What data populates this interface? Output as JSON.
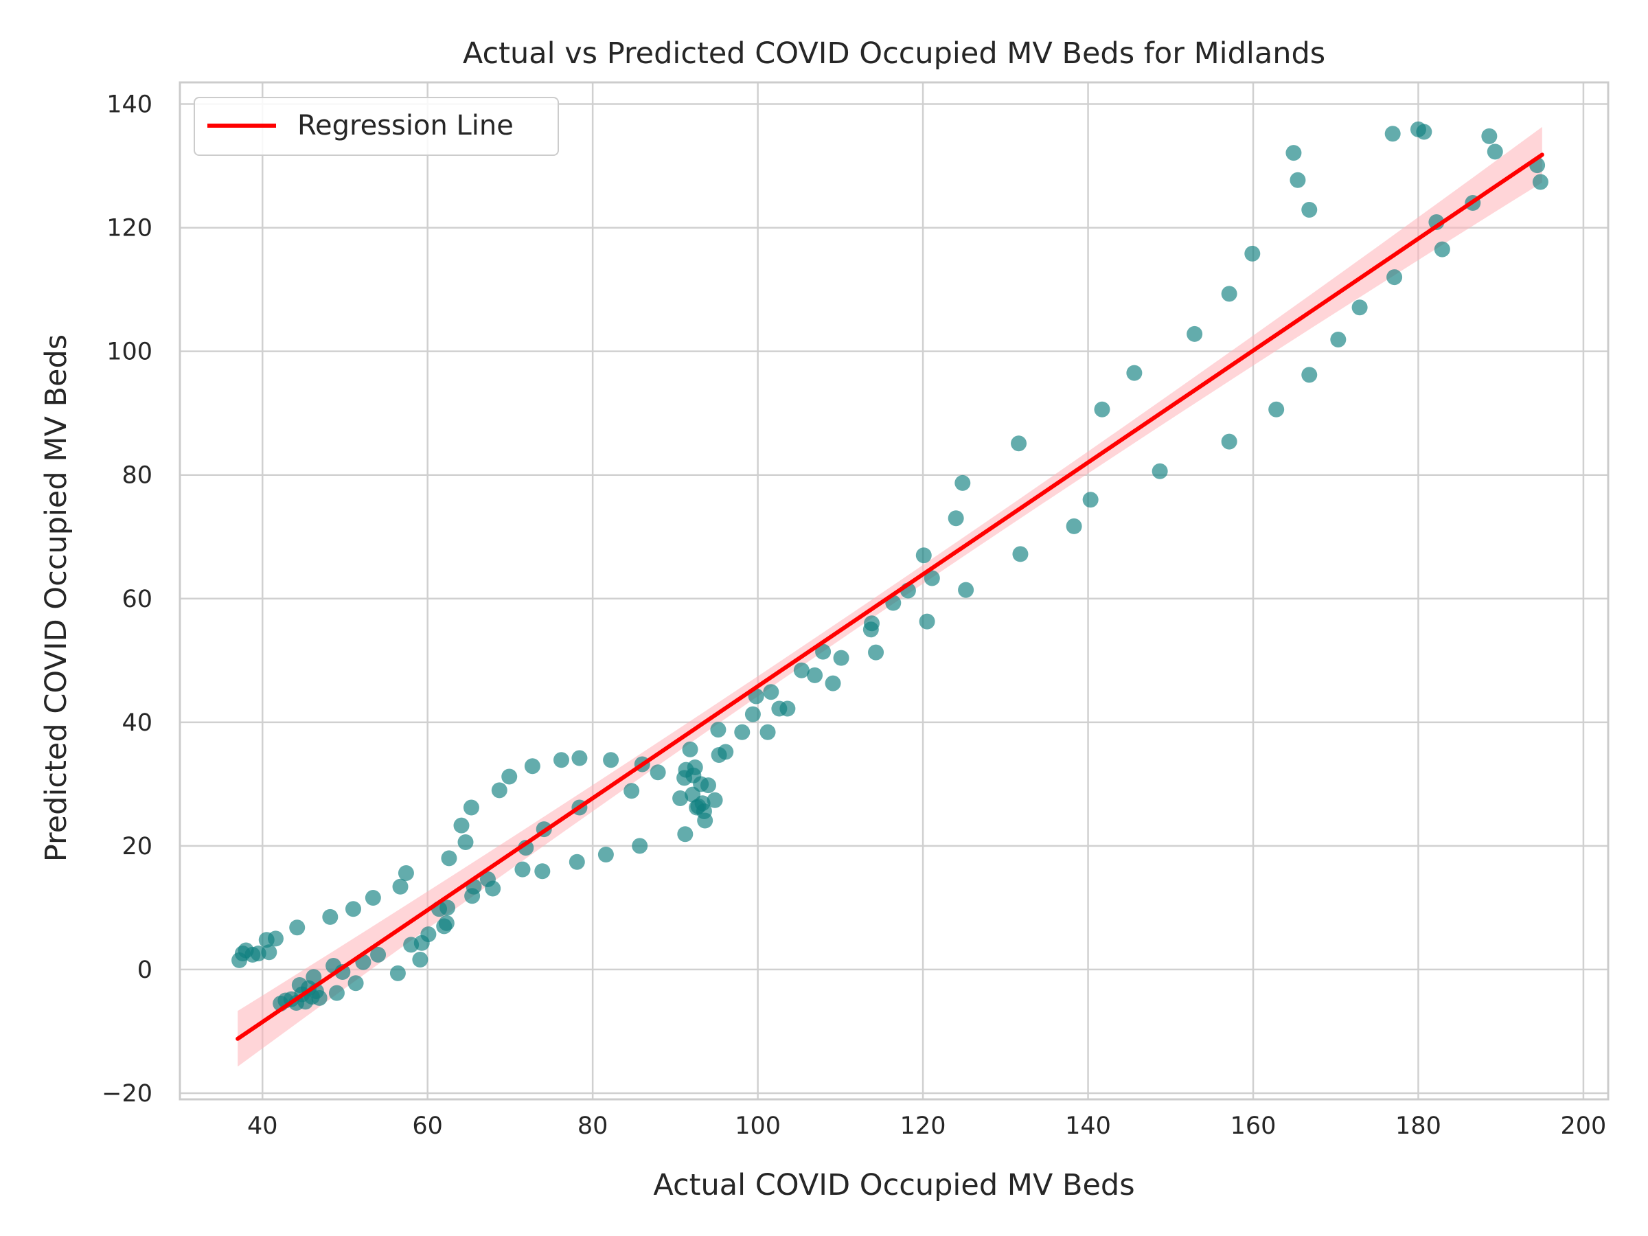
{
  "chart_data": {
    "type": "scatter",
    "title": "Actual vs Predicted COVID Occupied MV Beds for Midlands",
    "xlabel": "Actual COVID Occupied MV Beds",
    "ylabel": "Predicted COVID Occupied MV Beds",
    "xlim": [
      30,
      203
    ],
    "ylim": [
      -21,
      143.5
    ],
    "xticks": [
      40,
      60,
      80,
      100,
      120,
      140,
      160,
      180,
      200
    ],
    "yticks": [
      -20,
      0,
      20,
      40,
      60,
      80,
      100,
      120,
      140
    ],
    "xtick_labels": [
      "40",
      "60",
      "80",
      "100",
      "120",
      "140",
      "160",
      "180",
      "200"
    ],
    "ytick_labels": [
      "−20",
      "0",
      "20",
      "40",
      "60",
      "80",
      "100",
      "120",
      "140"
    ],
    "grid": true,
    "legend": {
      "position": "upper-left",
      "entries": [
        "Regression Line"
      ]
    },
    "colors": {
      "points": "#0f8080",
      "line": "#ff0000",
      "band": "#ffb3b8",
      "grid": "#d0d0d0",
      "spine": "#cccccc"
    },
    "regression": {
      "x": [
        37,
        195
      ],
      "y": [
        -11.2,
        131.8
      ],
      "ci_halfwidth_ends": 4.5,
      "ci_halfwidth_mid": 1.5
    },
    "series": [
      {
        "type": "scatter",
        "points": [
          [
            37.2,
            1.5
          ],
          [
            37.6,
            2.6
          ],
          [
            38.0,
            3.1
          ],
          [
            38.8,
            2.4
          ],
          [
            39.5,
            2.6
          ],
          [
            40.5,
            4.8
          ],
          [
            40.8,
            2.8
          ],
          [
            41.6,
            5.0
          ],
          [
            44.2,
            6.8
          ],
          [
            48.2,
            8.5
          ],
          [
            51.0,
            9.8
          ],
          [
            53.4,
            11.6
          ],
          [
            56.7,
            13.4
          ],
          [
            57.4,
            15.6
          ],
          [
            42.2,
            -5.5
          ],
          [
            42.8,
            -5.0
          ],
          [
            43.5,
            -4.8
          ],
          [
            44.1,
            -5.4
          ],
          [
            44.5,
            -2.5
          ],
          [
            44.8,
            -4.0
          ],
          [
            45.2,
            -5.2
          ],
          [
            45.6,
            -3.0
          ],
          [
            46.0,
            -4.4
          ],
          [
            46.2,
            -1.2
          ],
          [
            46.5,
            -3.5
          ],
          [
            46.9,
            -4.6
          ],
          [
            48.6,
            0.6
          ],
          [
            49.0,
            -3.8
          ],
          [
            49.7,
            -0.4
          ],
          [
            51.3,
            -2.2
          ],
          [
            52.2,
            1.2
          ],
          [
            54.0,
            2.4
          ],
          [
            56.4,
            -0.6
          ],
          [
            58.0,
            4.0
          ],
          [
            59.1,
            1.6
          ],
          [
            59.3,
            4.3
          ],
          [
            60.1,
            5.7
          ],
          [
            61.4,
            9.8
          ],
          [
            62.0,
            7.0
          ],
          [
            62.4,
            10.0
          ],
          [
            62.3,
            7.5
          ],
          [
            62.6,
            18.0
          ],
          [
            64.1,
            23.3
          ],
          [
            64.6,
            20.6
          ],
          [
            65.3,
            26.2
          ],
          [
            65.4,
            11.9
          ],
          [
            65.6,
            13.4
          ],
          [
            67.3,
            14.6
          ],
          [
            67.9,
            13.1
          ],
          [
            68.7,
            29.0
          ],
          [
            69.9,
            31.2
          ],
          [
            71.5,
            16.2
          ],
          [
            71.9,
            19.7
          ],
          [
            72.7,
            32.9
          ],
          [
            73.9,
            15.9
          ],
          [
            74.1,
            22.7
          ],
          [
            76.2,
            33.9
          ],
          [
            78.1,
            17.4
          ],
          [
            78.4,
            34.2
          ],
          [
            78.4,
            26.2
          ],
          [
            81.6,
            18.6
          ],
          [
            82.2,
            33.9
          ],
          [
            84.7,
            28.9
          ],
          [
            85.7,
            20.0
          ],
          [
            86.0,
            33.2
          ],
          [
            87.9,
            31.9
          ],
          [
            90.6,
            27.7
          ],
          [
            91.1,
            31.0
          ],
          [
            91.2,
            21.9
          ],
          [
            91.3,
            32.3
          ],
          [
            91.8,
            35.6
          ],
          [
            92.1,
            28.3
          ],
          [
            92.2,
            31.4
          ],
          [
            92.4,
            32.7
          ],
          [
            92.6,
            26.2
          ],
          [
            92.8,
            26.4
          ],
          [
            93.1,
            30.0
          ],
          [
            93.3,
            26.9
          ],
          [
            93.5,
            25.6
          ],
          [
            93.6,
            24.1
          ],
          [
            94.0,
            29.8
          ],
          [
            94.8,
            27.4
          ],
          [
            95.2,
            38.8
          ],
          [
            95.3,
            34.7
          ],
          [
            96.1,
            35.2
          ],
          [
            98.1,
            38.4
          ],
          [
            99.4,
            41.3
          ],
          [
            99.8,
            44.2
          ],
          [
            101.2,
            38.4
          ],
          [
            101.6,
            44.9
          ],
          [
            102.6,
            42.2
          ],
          [
            103.6,
            42.2
          ],
          [
            105.3,
            48.4
          ],
          [
            106.9,
            47.6
          ],
          [
            107.9,
            51.4
          ],
          [
            109.1,
            46.3
          ],
          [
            110.1,
            50.4
          ],
          [
            113.7,
            55.0
          ],
          [
            113.8,
            56.0
          ],
          [
            114.3,
            51.3
          ],
          [
            116.4,
            59.3
          ],
          [
            118.2,
            61.3
          ],
          [
            120.1,
            67.0
          ],
          [
            120.5,
            56.3
          ],
          [
            121.1,
            63.3
          ],
          [
            124.0,
            73.0
          ],
          [
            124.8,
            78.7
          ],
          [
            125.2,
            61.4
          ],
          [
            131.6,
            85.1
          ],
          [
            131.8,
            67.2
          ],
          [
            138.3,
            71.7
          ],
          [
            140.3,
            76.0
          ],
          [
            141.7,
            90.6
          ],
          [
            145.6,
            96.5
          ],
          [
            148.7,
            80.6
          ],
          [
            152.9,
            102.8
          ],
          [
            157.1,
            109.3
          ],
          [
            157.1,
            85.4
          ],
          [
            159.9,
            115.8
          ],
          [
            162.8,
            90.6
          ],
          [
            164.9,
            132.1
          ],
          [
            165.4,
            127.7
          ],
          [
            166.8,
            122.9
          ],
          [
            166.8,
            96.2
          ],
          [
            170.3,
            101.9
          ],
          [
            172.9,
            107.1
          ],
          [
            176.9,
            135.2
          ],
          [
            177.1,
            112.0
          ],
          [
            180.0,
            135.9
          ],
          [
            180.7,
            135.5
          ],
          [
            182.2,
            120.9
          ],
          [
            182.9,
            116.5
          ],
          [
            186.6,
            124.0
          ],
          [
            188.6,
            134.8
          ],
          [
            189.3,
            132.3
          ],
          [
            194.4,
            130.1
          ],
          [
            194.8,
            127.4
          ]
        ]
      }
    ]
  }
}
